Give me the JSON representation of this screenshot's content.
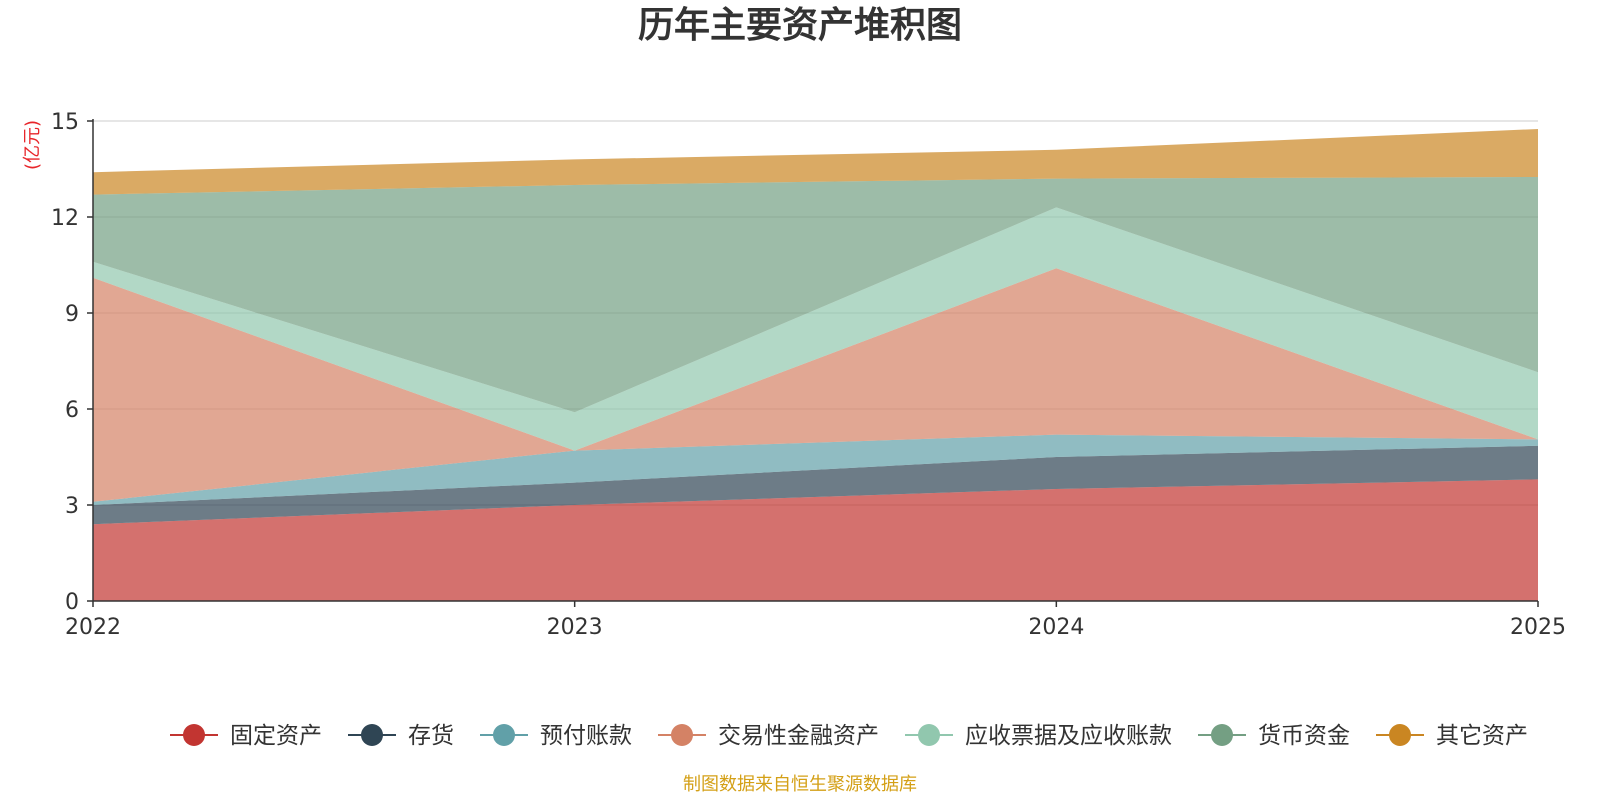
{
  "chart_data": {
    "type": "area",
    "stacked": true,
    "title": "历年主要资产堆积图",
    "unit_label": "(亿元)",
    "x": [
      "2022",
      "2023",
      "2024",
      "2025"
    ],
    "ylim": [
      0,
      15
    ],
    "yticks": [
      "0",
      "3",
      "6",
      "9",
      "12",
      "15"
    ],
    "grid": true,
    "legend_position": "bottom",
    "series": [
      {
        "name": "固定资产",
        "color": "#c23531",
        "values": [
          2.4,
          3.0,
          3.5,
          3.8
        ]
      },
      {
        "name": "存货",
        "color": "#2f4554",
        "values": [
          0.6,
          0.7,
          1.0,
          1.05
        ]
      },
      {
        "name": "预付账款",
        "color": "#61a0a8",
        "values": [
          0.1,
          1.0,
          0.7,
          0.2
        ]
      },
      {
        "name": "交易性金融资产",
        "color": "#d48265",
        "values": [
          7.0,
          0.0,
          5.2,
          0.0
        ]
      },
      {
        "name": "应收票据及应收账款",
        "color": "#91c7ae",
        "values": [
          0.5,
          1.2,
          1.9,
          2.1
        ]
      },
      {
        "name": "货币资金",
        "color": "#749f83",
        "values": [
          2.1,
          7.1,
          0.9,
          6.1
        ]
      },
      {
        "name": "其它资产",
        "color": "#ca8622",
        "values": [
          0.7,
          0.8,
          0.9,
          1.5
        ]
      }
    ],
    "source_note": "制图数据来自恒生聚源数据库"
  }
}
